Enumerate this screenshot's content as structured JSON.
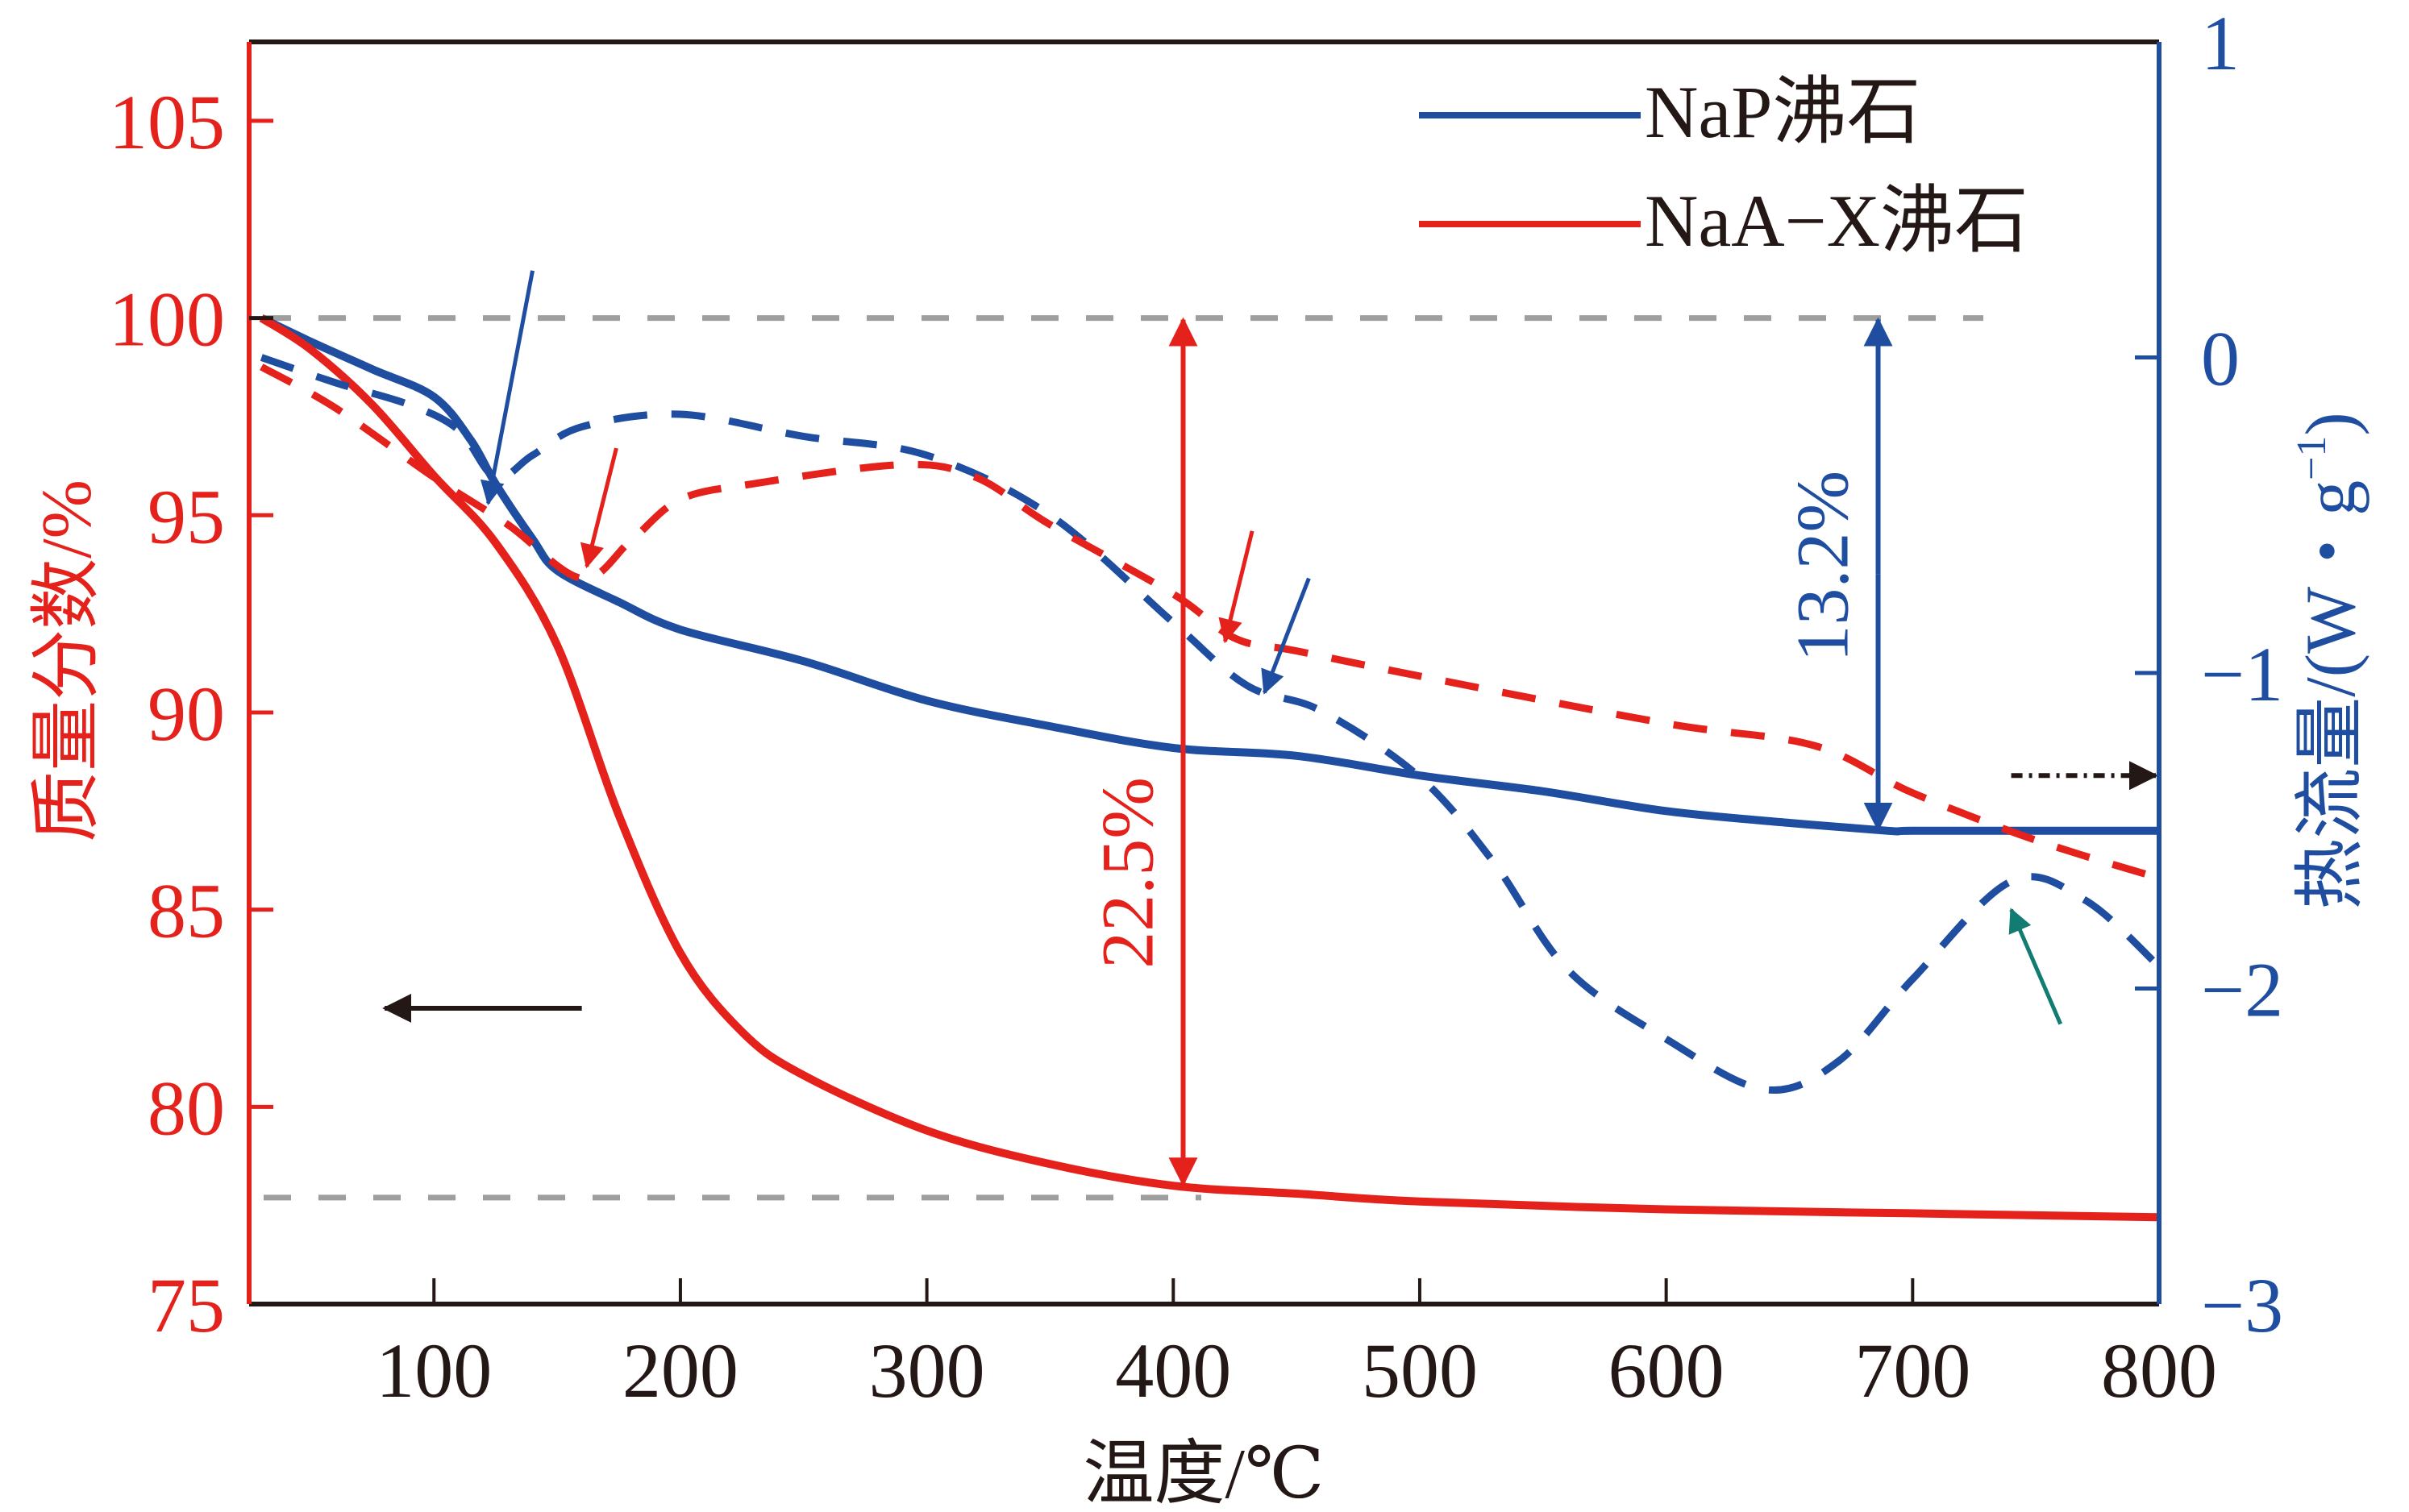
{
  "chart_data": {
    "type": "line",
    "title": "",
    "xlabel": "温度/℃",
    "ylabel_left": "质量分数/%",
    "ylabel_right_main": "热流量/(W・g",
    "ylabel_right_sup": "−1",
    "ylabel_right_close": ")",
    "xlim": [
      25,
      800
    ],
    "ylim_left": [
      75,
      107
    ],
    "ylim_right": [
      -3,
      1
    ],
    "x_ticks": [
      100,
      200,
      300,
      400,
      500,
      600,
      700,
      800
    ],
    "x_tick_labels": [
      "100",
      "200",
      "300",
      "400",
      "500",
      "600",
      "700",
      "800"
    ],
    "y_left_ticks": [
      75,
      80,
      85,
      90,
      95,
      100,
      105
    ],
    "y_left_tick_labels": [
      "75",
      "80",
      "85",
      "90",
      "95",
      "100",
      "105"
    ],
    "y_right_ticks": [
      -3,
      -2,
      -1,
      0,
      1
    ],
    "y_right_tick_labels": [
      "−3",
      "−2",
      "−1",
      "0",
      "1"
    ],
    "grid": false,
    "legend_position": "top-right",
    "colors": {
      "nap": "#1f4ea1",
      "naax": "#e5211c",
      "left_axis": "#e5211c",
      "right_axis": "#1f4ea1",
      "guide": "#9e9e9e",
      "teal_arrow": "#127b72",
      "black": "#231815"
    },
    "series": [
      {
        "name": "NaP沸石",
        "kind": "TG",
        "axis": "left",
        "style": "solid",
        "color": "#1f4ea1",
        "x": [
          30,
          50,
          75,
          100,
          115,
          125,
          140,
          150,
          175,
          200,
          250,
          300,
          350,
          400,
          450,
          500,
          550,
          600,
          650,
          690,
          700,
          750,
          800
        ],
        "y": [
          100,
          99.4,
          98.7,
          98.0,
          96.9,
          95.8,
          94.4,
          93.6,
          92.8,
          92.1,
          91.3,
          90.3,
          89.65,
          89.1,
          88.9,
          88.4,
          88.0,
          87.5,
          87.2,
          87.0,
          87.0,
          87.0,
          87.0
        ]
      },
      {
        "name": "NaA−X沸石",
        "kind": "TG",
        "axis": "left",
        "style": "solid",
        "color": "#e5211c",
        "x": [
          30,
          50,
          75,
          100,
          125,
          150,
          175,
          200,
          225,
          250,
          300,
          350,
          400,
          450,
          500,
          600,
          700,
          800
        ],
        "y": [
          100,
          99.2,
          97.8,
          96.0,
          94.3,
          91.7,
          87.4,
          83.9,
          81.9,
          80.8,
          79.4,
          78.55,
          78.0,
          77.8,
          77.6,
          77.4,
          77.3,
          77.2
        ]
      },
      {
        "name": "NaP沸石",
        "kind": "DSC",
        "axis": "right",
        "style": "dashed",
        "color": "#1f4ea1",
        "x": [
          30,
          60,
          90,
          110,
          125,
          140,
          160,
          200,
          250,
          300,
          350,
          400,
          430,
          460,
          500,
          530,
          560,
          600,
          640,
          670,
          700,
          740,
          770,
          800
        ],
        "y": [
          0.0,
          -0.08,
          -0.15,
          -0.23,
          -0.38,
          -0.31,
          -0.22,
          -0.18,
          -0.25,
          -0.31,
          -0.5,
          -0.84,
          -1.04,
          -1.12,
          -1.33,
          -1.6,
          -1.94,
          -2.16,
          -2.32,
          -2.23,
          -1.97,
          -1.66,
          -1.72,
          -1.93
        ]
      },
      {
        "name": "NaA−X沸石",
        "kind": "DSC",
        "axis": "right",
        "style": "dashed",
        "color": "#e5211c",
        "x": [
          30,
          60,
          100,
          130,
          160,
          180,
          200,
          230,
          290,
          320,
          350,
          400,
          425,
          450,
          500,
          600,
          660,
          700,
          750,
          800
        ],
        "y": [
          -0.03,
          -0.16,
          -0.38,
          -0.53,
          -0.7,
          -0.58,
          -0.45,
          -0.4,
          -0.34,
          -0.38,
          -0.53,
          -0.75,
          -0.89,
          -0.93,
          -1.01,
          -1.16,
          -1.23,
          -1.38,
          -1.53,
          -1.65
        ]
      }
    ],
    "legend": [
      {
        "label": "NaP沸石",
        "color": "#1f4ea1"
      },
      {
        "label": "NaA−X沸石",
        "color": "#e5211c"
      }
    ],
    "annotations": {
      "guide_lines_left_y": [
        100,
        77.7
      ],
      "mass_loss_naax": {
        "label": "22.5%",
        "x": 404,
        "y_from": 100,
        "y_to": 78.0
      },
      "mass_loss_nap": {
        "label": "13.2%",
        "x": 686,
        "y_from": 100,
        "y_to": 87.0
      },
      "left_axis_arrow": {
        "x_from": 160,
        "x_to": 80,
        "y": 82.5
      },
      "right_axis_arrow": {
        "x_from": 740,
        "x_to": 800,
        "y": 88.4
      },
      "peak_arrows": [
        {
          "color": "#1f4ea1",
          "x_tip": 122,
          "y_tip": 95.3,
          "x_tail": 140,
          "y_tail": 101.2
        },
        {
          "color": "#e5211c",
          "x_tip": 162,
          "y_tip": 93.7,
          "x_tail": 174,
          "y_tail": 96.7
        },
        {
          "color": "#e5211c",
          "x_tip": 421,
          "y_tip": 91.8,
          "x_tail": 432,
          "y_tail": 94.6
        },
        {
          "color": "#1f4ea1",
          "x_tip": 437,
          "y_tip": 90.5,
          "x_tail": 455,
          "y_tail": 93.4
        },
        {
          "color": "#127b72",
          "x_tip": 740,
          "y_tip": 85.0,
          "x_tail": 760,
          "y_tail": 82.1
        }
      ]
    }
  }
}
